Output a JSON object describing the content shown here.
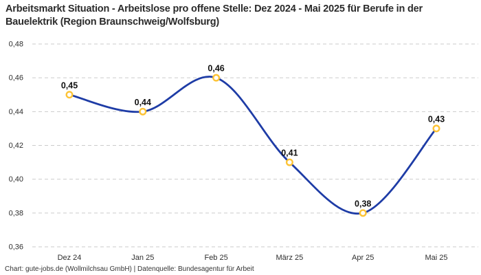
{
  "title": "Arbeitsmarkt Situation - Arbeitslose pro offene Stelle: Dez 2024 - Mai 2025 für Berufe in der Bauelektrik (Region Braunschweig/Wolfsburg)",
  "footer": "Chart: gute-jobs.de (Wollmilchsau GmbH) | Datenquelle: Bundesagentur für Arbeit",
  "chart_data": {
    "type": "line",
    "title": "Arbeitsmarkt Situation - Arbeitslose pro offene Stelle: Dez 2024 - Mai 2025 für Berufe in der Bauelektrik (Region Braunschweig/Wolfsburg)",
    "categories": [
      "Dez 24",
      "Jan 25",
      "Feb 25",
      "März 25",
      "Apr 25",
      "Mai 25"
    ],
    "series": [
      {
        "name": "Arbeitslose pro offene Stelle",
        "values": [
          0.45,
          0.44,
          0.46,
          0.41,
          0.38,
          0.43
        ],
        "point_labels": [
          "0,45",
          "0,44",
          "0,46",
          "0,41",
          "0,38",
          "0,43"
        ]
      }
    ],
    "xlabel": "",
    "ylabel": "",
    "ylim": [
      0.36,
      0.48
    ],
    "yticks": [
      0.48,
      0.46,
      0.44,
      0.42,
      0.4,
      0.38,
      0.36
    ],
    "ytick_labels": [
      "0,48",
      "0,46",
      "0,44",
      "0,42",
      "0,40",
      "0,38",
      "0,36"
    ],
    "grid": true,
    "grid_style": "dashed",
    "legend_position": "none",
    "line_smooth": true,
    "colors": {
      "line": "#1e3ca6",
      "marker_stroke": "#fdc335",
      "marker_fill": "#ffffff",
      "grid": "#cbcbcb",
      "point_label": "#111111",
      "axis_text": "#2e2e2e",
      "title_text": "#2b2b2b",
      "background": "#ffffff"
    }
  }
}
